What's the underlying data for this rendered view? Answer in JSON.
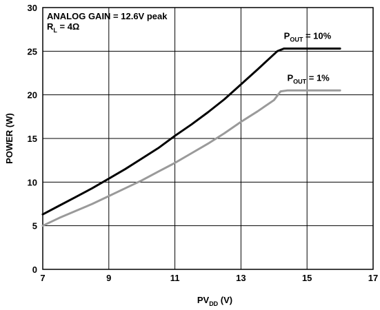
{
  "chart_data": {
    "type": "line",
    "xlabel": {
      "main": "PV",
      "sub": "DD",
      "suffix": " (V)"
    },
    "ylabel": "POWER (W)",
    "xlim": [
      7,
      17
    ],
    "ylim": [
      0,
      30
    ],
    "xticks": [
      "7",
      "9",
      "11",
      "13",
      "15",
      "17"
    ],
    "yticks": [
      "0",
      "5",
      "10",
      "15",
      "20",
      "25",
      "30"
    ],
    "grid": true,
    "annotations": {
      "line1": "ANALOG GAIN = 12.6V peak",
      "line2_main": "R",
      "line2_sub": "L",
      "line2_suffix": " = 4Ω"
    },
    "series": [
      {
        "label_main": "P",
        "label_sub": "OUT",
        "label_suffix": " = 10%",
        "color": "#000000",
        "x": [
          7,
          7.5,
          8,
          8.5,
          9,
          9.5,
          10,
          10.5,
          11,
          11.5,
          12,
          12.5,
          13,
          13.5,
          13.9,
          14.1,
          14.3,
          15,
          16
        ],
        "y": [
          6.3,
          7.3,
          8.3,
          9.3,
          10.4,
          11.5,
          12.7,
          13.9,
          15.3,
          16.6,
          18.0,
          19.5,
          21.2,
          22.9,
          24.3,
          25.0,
          25.3,
          25.3,
          25.3
        ]
      },
      {
        "label_main": "P",
        "label_sub": "OUT",
        "label_suffix": " = 1%",
        "color": "#9a9a9a",
        "x": [
          7,
          7.5,
          8,
          8.5,
          9,
          9.5,
          10,
          10.5,
          11,
          11.5,
          12,
          12.5,
          13,
          13.5,
          14,
          14.2,
          14.4,
          15,
          16
        ],
        "y": [
          5.0,
          5.9,
          6.7,
          7.5,
          8.4,
          9.3,
          10.2,
          11.2,
          12.2,
          13.3,
          14.4,
          15.6,
          16.9,
          18.1,
          19.4,
          20.4,
          20.5,
          20.5,
          20.5
        ]
      }
    ]
  }
}
